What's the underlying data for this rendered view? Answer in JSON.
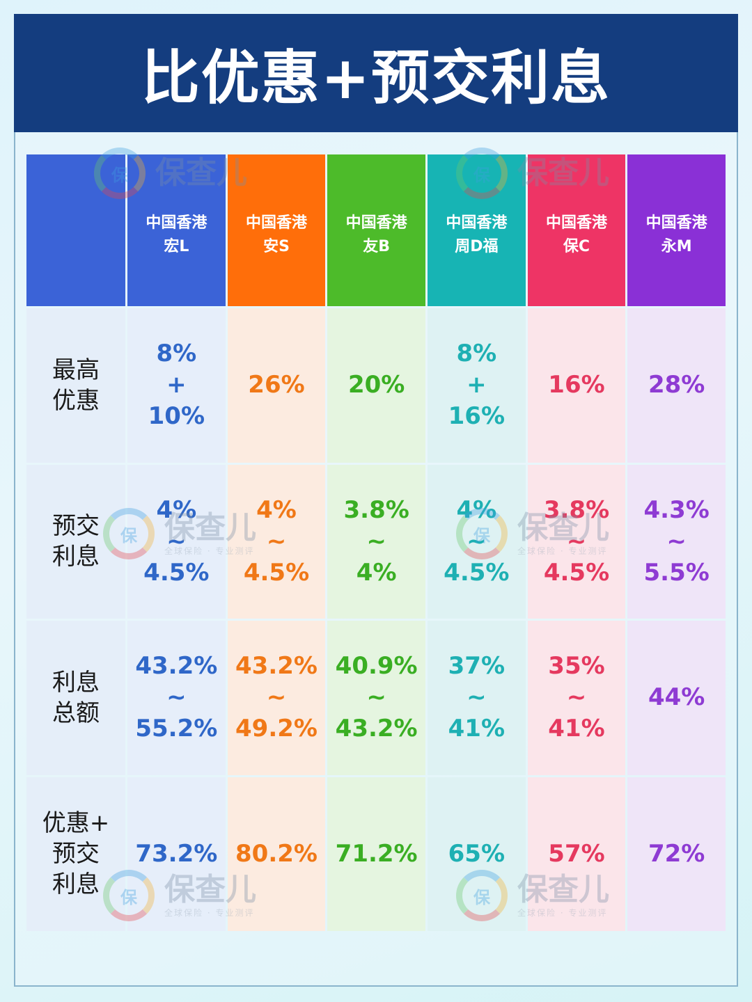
{
  "title": "比优惠+预交利息",
  "watermark": {
    "logo_char": "保",
    "name": "保查儿",
    "tagline": "全球保险 · 专业测评"
  },
  "columns": [
    {
      "line1": "中国香港",
      "line2": "宏L",
      "color": "#2f67c8",
      "bg": "#e6eefa",
      "head": "#3b63d7"
    },
    {
      "line1": "中国香港",
      "line2": "安S",
      "color": "#f07817",
      "bg": "#fcebe0",
      "head": "#ff6e0a"
    },
    {
      "line1": "中国香港",
      "line2": "友B",
      "color": "#3aae23",
      "bg": "#e5f5e0",
      "head": "#4dbb2a"
    },
    {
      "line1": "中国香港",
      "line2": "周D福",
      "color": "#1eb0b3",
      "bg": "#def2f3",
      "head": "#17b4b4"
    },
    {
      "line1": "中国香港",
      "line2": "保C",
      "color": "#e5395f",
      "bg": "#fbe5ea",
      "head": "#ee3465"
    },
    {
      "line1": "中国香港",
      "line2": "永M",
      "color": "#8e3bd3",
      "bg": "#efe5f8",
      "head": "#8a30d6"
    }
  ],
  "rows": [
    {
      "label": "最高\n优惠",
      "values": [
        [
          "8%",
          "+",
          "10%"
        ],
        [
          "26%"
        ],
        [
          "20%"
        ],
        [
          "8%",
          "+",
          "16%"
        ],
        [
          "16%"
        ],
        [
          "28%"
        ]
      ]
    },
    {
      "label": "预交\n利息",
      "values": [
        [
          "4%",
          "~",
          "4.5%"
        ],
        [
          "4%",
          "~",
          "4.5%"
        ],
        [
          "3.8%",
          "~",
          "4%"
        ],
        [
          "4%",
          "~",
          "4.5%"
        ],
        [
          "3.8%",
          "~",
          "4.5%"
        ],
        [
          "4.3%",
          "~",
          "5.5%"
        ]
      ]
    },
    {
      "label": "利息\n总额",
      "values": [
        [
          "43.2%",
          "~",
          "55.2%"
        ],
        [
          "43.2%",
          "~",
          "49.2%"
        ],
        [
          "40.9%",
          "~",
          "43.2%"
        ],
        [
          "37%",
          "~",
          "41%"
        ],
        [
          "35%",
          "~",
          "41%"
        ],
        [
          "44%"
        ]
      ]
    },
    {
      "label": "优惠+\n预交\n利息",
      "values": [
        [
          "73.2%"
        ],
        [
          "80.2%"
        ],
        [
          "71.2%"
        ],
        [
          "65%"
        ],
        [
          "57%"
        ],
        [
          "72%"
        ]
      ]
    }
  ]
}
